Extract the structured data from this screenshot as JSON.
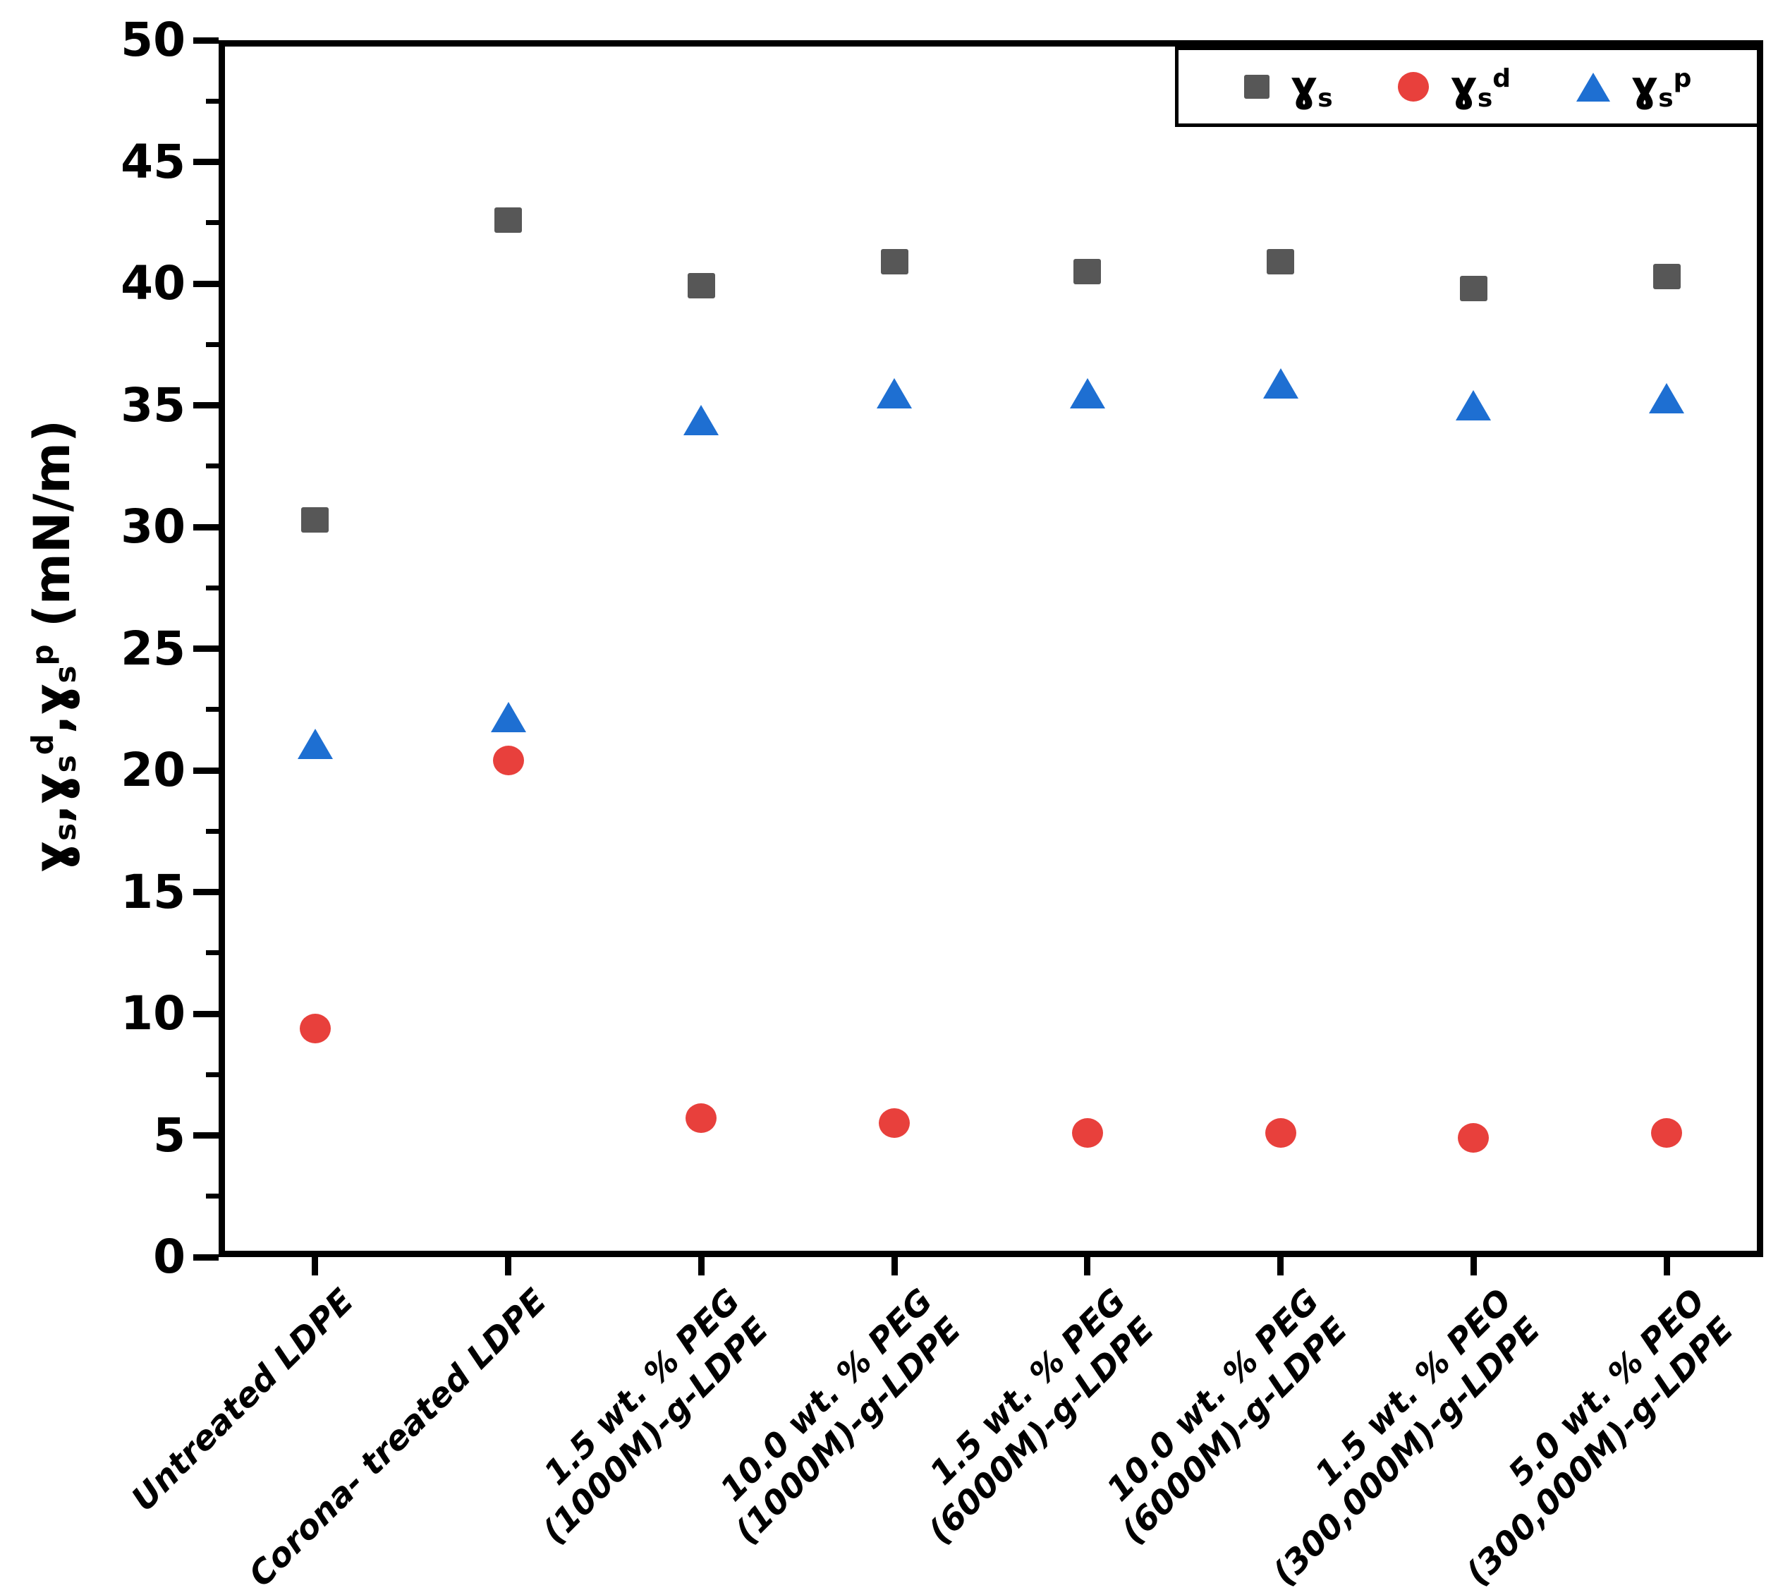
{
  "colors": {
    "frame": "#000000",
    "series_gamma_s": "#575757",
    "series_gamma_s_d": "#e8403c",
    "series_gamma_s_p": "#1e6fd2",
    "background": "#ffffff"
  },
  "y_axis": {
    "terms": [
      {
        "base": "ɣ",
        "sub": "s",
        "sup": ""
      },
      {
        "base": "ɣ",
        "sub": "s",
        "sup": "d"
      },
      {
        "base": "ɣ",
        "sub": "s",
        "sup": "p"
      }
    ],
    "separator": ",",
    "suffix": " (mN/m)",
    "ticks": [
      "0",
      "5",
      "10",
      "15",
      "20",
      "25",
      "30",
      "35",
      "40",
      "45",
      "50"
    ]
  },
  "legend": {
    "items": [
      {
        "marker": "square",
        "color": "#575757",
        "base": "ɣ",
        "sub": "s",
        "sup": ""
      },
      {
        "marker": "circle",
        "color": "#e8403c",
        "base": "ɣ",
        "sub": "s",
        "sup": "d"
      },
      {
        "marker": "triangle",
        "color": "#1e6fd2",
        "base": "ɣ",
        "sub": "s",
        "sup": "p"
      }
    ]
  },
  "chart_data": {
    "type": "scatter",
    "title": "",
    "xlabel": "",
    "ylabel": "γs, γs^d, γs^p (mN/m)",
    "ylim": [
      0,
      50
    ],
    "ytick_step": 5,
    "ytick_minor_step": 2.5,
    "grid": false,
    "legend_position": "top-right",
    "categories": [
      {
        "line1": "Untreated LDPE",
        "line2": ""
      },
      {
        "line1": "Corona- treated LDPE",
        "line2": ""
      },
      {
        "line1": "1.5 wt. % PEG",
        "line2": "(1000M)-g-LDPE"
      },
      {
        "line1": "10.0 wt. % PEG",
        "line2": "(1000M)-g-LDPE"
      },
      {
        "line1": "1.5 wt. % PEG",
        "line2": "(6000M)-g-LDPE"
      },
      {
        "line1": "10.0 wt. % PEG",
        "line2": "(6000M)-g-LDPE"
      },
      {
        "line1": "1.5 wt. % PEO",
        "line2": "(300,000M)-g-LDPE"
      },
      {
        "line1": "5.0 wt. % PEO",
        "line2": "(300,000M)-g-LDPE"
      }
    ],
    "series": [
      {
        "name": "γs",
        "marker": "square",
        "color": "#575757",
        "values": [
          30.3,
          42.6,
          39.9,
          40.9,
          40.5,
          40.9,
          39.8,
          40.3
        ]
      },
      {
        "name": "γs^d",
        "marker": "circle",
        "color": "#e8403c",
        "values": [
          9.4,
          20.4,
          5.7,
          5.5,
          5.1,
          5.1,
          4.9,
          5.1
        ]
      },
      {
        "name": "γs^p",
        "marker": "triangle",
        "color": "#1e6fd2",
        "values": [
          21.1,
          22.2,
          34.4,
          35.5,
          35.5,
          35.9,
          35.0,
          35.3
        ]
      }
    ]
  }
}
